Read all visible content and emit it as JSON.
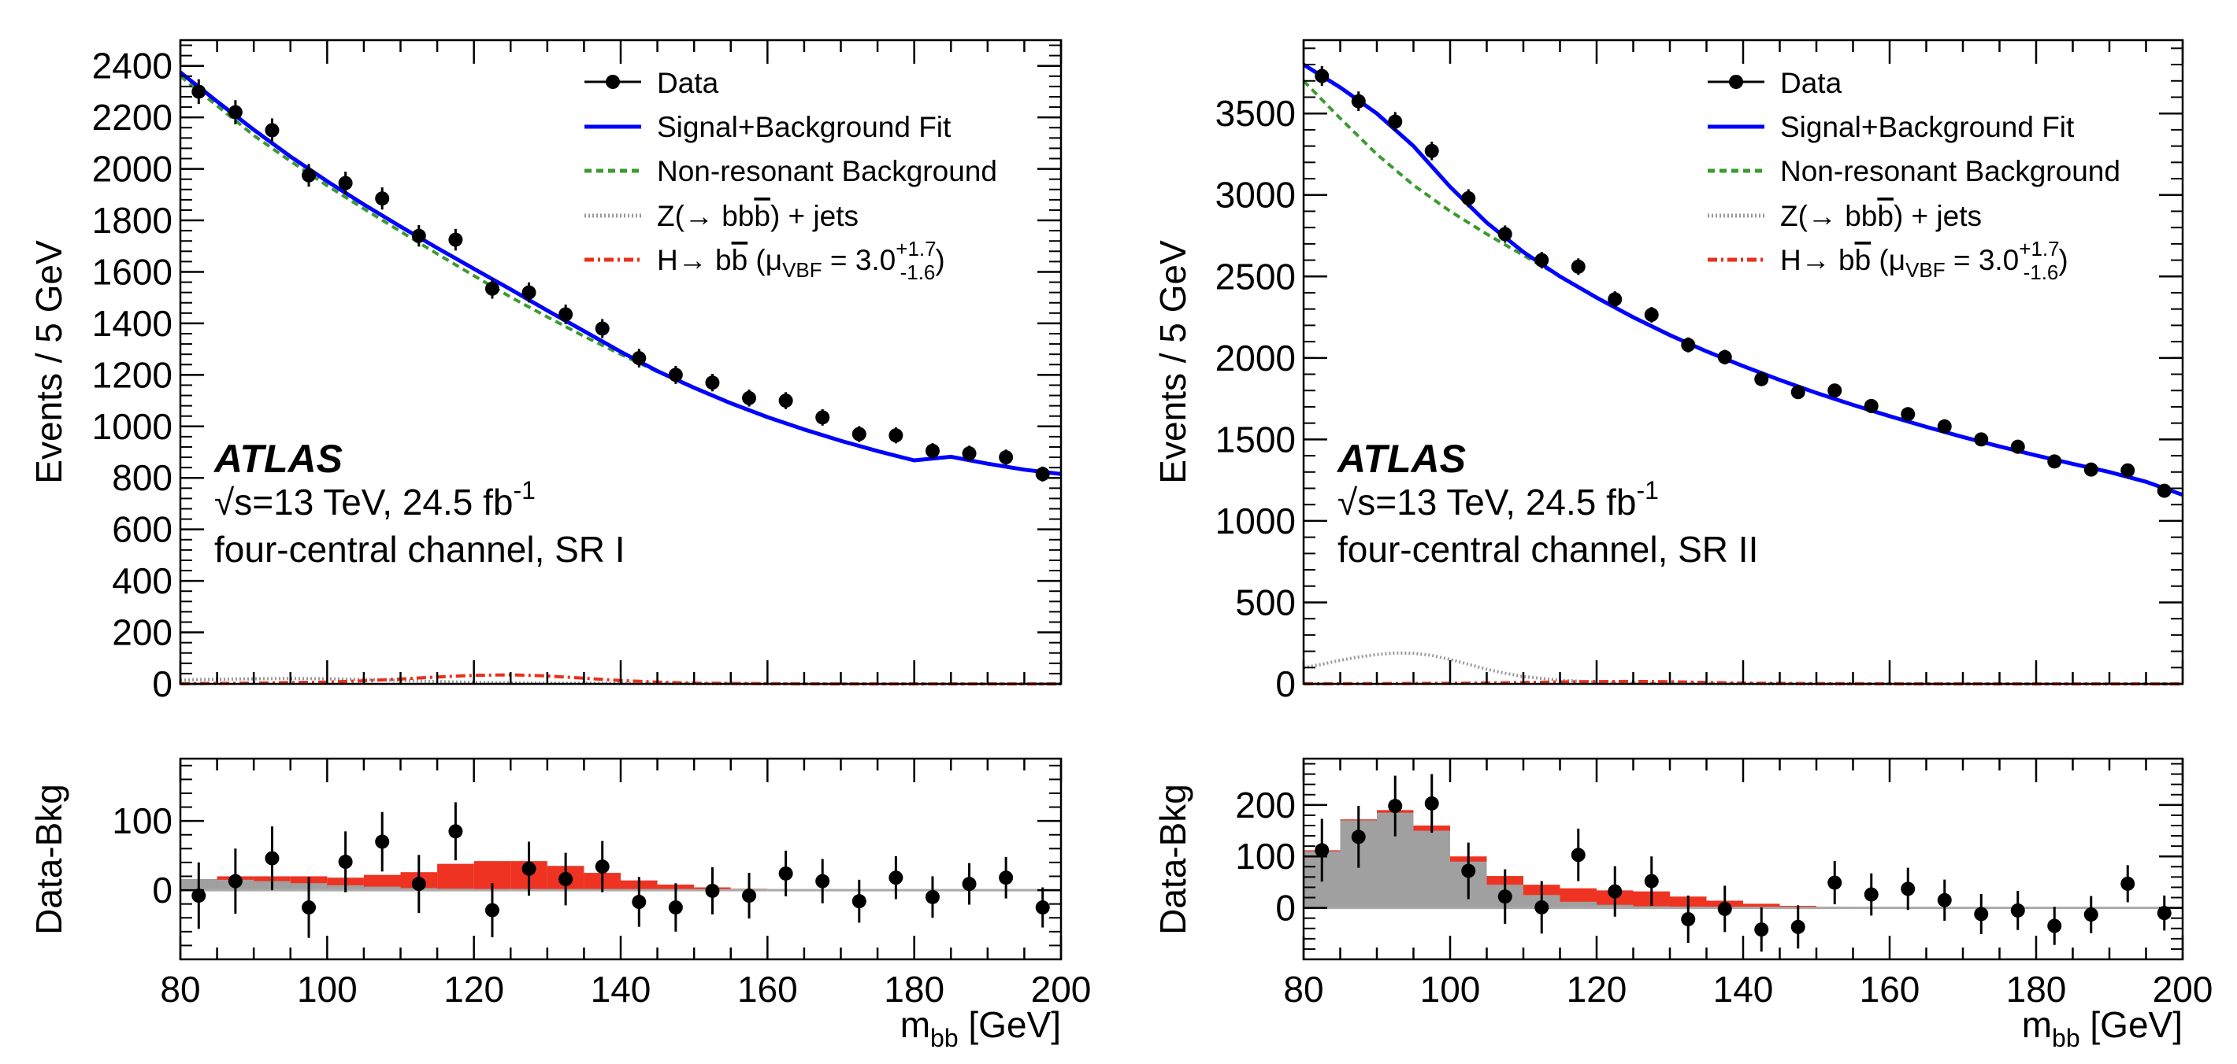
{
  "colors": {
    "data": "#000000",
    "fit": "#0000ff",
    "background": "#3a9b2e",
    "zjets": "#9a9a9a",
    "higgs": "#e8301c",
    "residual_z": "#a0a0a0",
    "residual_h": "#ee3322"
  },
  "legend": {
    "data": "Data",
    "fit": "Signal+Background Fit",
    "bkg": "Non-resonant Background",
    "z_pre": "Z(→ b",
    "z_bbar": "b",
    "z_post": ") + jets",
    "h_pre": "H→ b",
    "h_bbar": "b",
    "h_mu": " (μ",
    "h_mu_sub": "VBF",
    "h_eq": " =  3.0",
    "h_sup": "+1.7",
    "h_sub": "-1.6",
    "h_close": ")"
  },
  "atlas": {
    "label": "ATLAS",
    "energy_pre": "s=13 TeV, 24.5 fb",
    "energy_sup": "-1"
  },
  "axes": {
    "ylabel_top": "Events / 5 GeV",
    "ylabel_bottom": "Data-Bkg",
    "xlabel_main": "m",
    "xlabel_sub": "bb",
    "xlabel_unit": " [GeV]"
  },
  "chart_data": [
    {
      "type": "scatter",
      "panel": "SR I",
      "channel": "four-central channel, SR I",
      "xlim": [
        80,
        200
      ],
      "ylim": [
        0,
        2500
      ],
      "yticks": [
        0,
        200,
        400,
        600,
        800,
        1000,
        1200,
        1400,
        1600,
        1800,
        2000,
        2200,
        2400
      ],
      "xticks": [
        80,
        100,
        120,
        140,
        160,
        180,
        200
      ],
      "data": {
        "x": [
          82.5,
          87.5,
          92.5,
          97.5,
          102.5,
          107.5,
          112.5,
          117.5,
          122.5,
          127.5,
          132.5,
          137.5,
          142.5,
          147.5,
          152.5,
          157.5,
          162.5,
          167.5,
          172.5,
          177.5,
          182.5,
          187.5,
          192.5,
          197.5
        ],
        "y": [
          2300,
          2220,
          2150,
          1975,
          1945,
          1885,
          1740,
          1725,
          1535,
          1520,
          1435,
          1380,
          1265,
          1200,
          1170,
          1110,
          1100,
          1035,
          970,
          965,
          905,
          895,
          880,
          815
        ],
        "err": [
          48,
          47,
          46,
          44,
          44,
          43,
          42,
          42,
          39,
          39,
          38,
          37,
          36,
          35,
          34,
          33,
          33,
          32,
          31,
          31,
          30,
          30,
          30,
          29
        ]
      },
      "fit": {
        "x": [
          80,
          85,
          90,
          95,
          100,
          105,
          110,
          115,
          120,
          125,
          130,
          135,
          140,
          145,
          150,
          155,
          160,
          165,
          170,
          175,
          180,
          185,
          190,
          195,
          200
        ],
        "y": [
          2375,
          2262,
          2152,
          2048,
          1952,
          1862,
          1776,
          1693,
          1612,
          1532,
          1450,
          1370,
          1290,
          1215,
          1150,
          1090,
          1036,
          988,
          944,
          904,
          868,
          882,
          855,
          832,
          815
        ]
      },
      "background": {
        "x": [
          80,
          85,
          90,
          95,
          100,
          105,
          110,
          115,
          120,
          125,
          130,
          135,
          140,
          145,
          150,
          155,
          160,
          165,
          170,
          175,
          180,
          185,
          190,
          195,
          200
        ],
        "y": [
          2360,
          2245,
          2130,
          2030,
          1935,
          1845,
          1757,
          1670,
          1585,
          1502,
          1425,
          1350,
          1280,
          1212,
          1150,
          1090,
          1036,
          988,
          944,
          904,
          868,
          882,
          855,
          832,
          815
        ]
      },
      "zjets": {
        "x": [
          80,
          85,
          90,
          95,
          100,
          105,
          110,
          115,
          120,
          125,
          130,
          140,
          150,
          160,
          170,
          180,
          190,
          200
        ],
        "y": [
          15,
          18,
          20,
          21,
          20,
          17,
          13,
          9,
          6,
          4,
          3,
          2,
          1,
          1,
          0,
          0,
          0,
          0
        ]
      },
      "higgs": {
        "x": [
          80,
          90,
          100,
          105,
          110,
          115,
          120,
          125,
          130,
          135,
          140,
          145,
          150,
          160,
          170,
          180,
          190,
          200
        ],
        "y": [
          1,
          3,
          7,
          12,
          19,
          27,
          33,
          35,
          31,
          22,
          13,
          7,
          3,
          1,
          0,
          0,
          0,
          0
        ]
      },
      "residual": {
        "ylim": [
          -100,
          190
        ],
        "yticks": [
          0,
          100
        ],
        "bins": [
          80,
          85,
          90,
          95,
          100,
          105,
          110,
          115,
          120,
          125,
          130,
          135,
          140,
          145,
          150,
          155,
          160,
          165,
          170,
          175,
          180,
          185,
          190,
          195,
          200
        ],
        "z_stack": [
          16,
          15,
          13,
          10,
          7,
          5,
          3,
          2,
          1,
          1,
          1,
          0,
          0,
          0,
          0,
          0,
          0,
          0,
          0,
          0,
          0,
          0,
          0,
          0
        ],
        "h_stack": [
          16,
          20,
          20,
          20,
          18,
          22,
          26,
          38,
          42,
          42,
          35,
          25,
          14,
          8,
          4,
          2,
          1,
          0,
          0,
          0,
          0,
          0,
          0,
          0
        ],
        "x": [
          82.5,
          87.5,
          92.5,
          97.5,
          102.5,
          107.5,
          112.5,
          117.5,
          122.5,
          127.5,
          132.5,
          137.5,
          142.5,
          147.5,
          152.5,
          157.5,
          162.5,
          167.5,
          172.5,
          177.5,
          182.5,
          187.5,
          192.5,
          197.5
        ],
        "y": [
          -8,
          13,
          46,
          -25,
          41,
          70,
          9,
          85,
          -29,
          31,
          16,
          34,
          -17,
          -25,
          -1,
          -8,
          24,
          13,
          -16,
          18,
          -10,
          9,
          18,
          -25
        ],
        "err": [
          48,
          47,
          46,
          44,
          44,
          43,
          42,
          42,
          39,
          39,
          38,
          37,
          36,
          35,
          34,
          33,
          33,
          32,
          31,
          31,
          30,
          30,
          30,
          29
        ]
      }
    },
    {
      "type": "scatter",
      "panel": "SR II",
      "channel": "four-central channel, SR II",
      "xlim": [
        80,
        200
      ],
      "ylim": [
        0,
        3950
      ],
      "yticks": [
        0,
        500,
        1000,
        1500,
        2000,
        2500,
        3000,
        3500
      ],
      "xticks": [
        80,
        100,
        120,
        140,
        160,
        180,
        200
      ],
      "data": {
        "x": [
          82.5,
          87.5,
          92.5,
          97.5,
          102.5,
          107.5,
          112.5,
          117.5,
          122.5,
          127.5,
          132.5,
          137.5,
          142.5,
          147.5,
          152.5,
          157.5,
          162.5,
          167.5,
          172.5,
          177.5,
          182.5,
          187.5,
          192.5,
          197.5
        ],
        "y": [
          3730,
          3575,
          3450,
          3270,
          2980,
          2760,
          2600,
          2560,
          2360,
          2265,
          2080,
          2005,
          1870,
          1790,
          1800,
          1705,
          1655,
          1580,
          1500,
          1455,
          1365,
          1315,
          1310,
          1185
        ],
        "err": [
          61,
          60,
          59,
          57,
          55,
          53,
          51,
          51,
          49,
          48,
          46,
          45,
          43,
          42,
          42,
          41,
          41,
          40,
          39,
          38,
          37,
          36,
          36,
          34
        ]
      },
      "fit": {
        "x": [
          80,
          85,
          90,
          95,
          100,
          105,
          110,
          115,
          120,
          125,
          130,
          135,
          140,
          145,
          150,
          155,
          160,
          165,
          170,
          175,
          180,
          185,
          190,
          195,
          200
        ],
        "y": [
          3800,
          3660,
          3500,
          3300,
          3050,
          2830,
          2650,
          2500,
          2370,
          2250,
          2140,
          2040,
          1950,
          1865,
          1785,
          1712,
          1643,
          1577,
          1515,
          1457,
          1402,
          1350,
          1300,
          1240,
          1160
        ]
      },
      "background": {
        "x": [
          80,
          85,
          90,
          95,
          100,
          105,
          110,
          115,
          120,
          125,
          130,
          135,
          140,
          145,
          150,
          155,
          160,
          165,
          170,
          175,
          180,
          185,
          190,
          195,
          200
        ],
        "y": [
          3700,
          3470,
          3250,
          3060,
          2900,
          2760,
          2630,
          2500,
          2370,
          2250,
          2140,
          2040,
          1950,
          1865,
          1785,
          1712,
          1643,
          1577,
          1515,
          1457,
          1402,
          1350,
          1300,
          1240,
          1160
        ]
      },
      "zjets": {
        "x": [
          80,
          82.5,
          85,
          87.5,
          90,
          92.5,
          95,
          97.5,
          100,
          102.5,
          105,
          107.5,
          110,
          115,
          120,
          125,
          130,
          140,
          150,
          160,
          180,
          200
        ],
        "y": [
          100,
          120,
          145,
          165,
          180,
          190,
          188,
          175,
          150,
          120,
          90,
          65,
          45,
          22,
          10,
          5,
          3,
          1,
          0,
          0,
          0,
          0
        ]
      },
      "higgs": {
        "x": [
          80,
          90,
          100,
          110,
          115,
          120,
          125,
          130,
          135,
          140,
          150,
          160,
          180,
          200
        ],
        "y": [
          1,
          2,
          4,
          8,
          12,
          14,
          15,
          13,
          9,
          5,
          2,
          1,
          0,
          0
        ]
      },
      "residual": {
        "ylim": [
          -100,
          290
        ],
        "yticks": [
          0,
          100,
          200
        ],
        "bins": [
          80,
          85,
          90,
          95,
          100,
          105,
          110,
          115,
          120,
          125,
          130,
          135,
          140,
          145,
          150,
          155,
          160,
          165,
          170,
          175,
          180,
          185,
          190,
          195,
          200
        ],
        "z_stack": [
          110,
          170,
          185,
          150,
          90,
          45,
          25,
          12,
          6,
          3,
          2,
          1,
          1,
          0,
          0,
          0,
          0,
          0,
          0,
          0,
          0,
          0,
          0,
          0
        ],
        "h_stack": [
          112,
          172,
          190,
          160,
          100,
          62,
          45,
          38,
          34,
          32,
          22,
          14,
          8,
          4,
          2,
          1,
          1,
          0,
          0,
          0,
          0,
          0,
          0,
          0
        ],
        "x": [
          82.5,
          87.5,
          92.5,
          97.5,
          102.5,
          107.5,
          112.5,
          117.5,
          122.5,
          127.5,
          132.5,
          137.5,
          142.5,
          147.5,
          152.5,
          157.5,
          162.5,
          167.5,
          172.5,
          177.5,
          182.5,
          187.5,
          192.5,
          197.5
        ],
        "y": [
          112,
          138,
          198,
          203,
          72,
          22,
          1,
          103,
          32,
          52,
          -22,
          -2,
          -42,
          -37,
          49,
          26,
          37,
          15,
          -12,
          -5,
          -35,
          -13,
          47,
          -10
        ],
        "err": [
          61,
          60,
          59,
          57,
          55,
          53,
          51,
          51,
          49,
          48,
          46,
          45,
          43,
          42,
          42,
          41,
          41,
          40,
          39,
          38,
          37,
          36,
          36,
          34
        ]
      }
    }
  ]
}
